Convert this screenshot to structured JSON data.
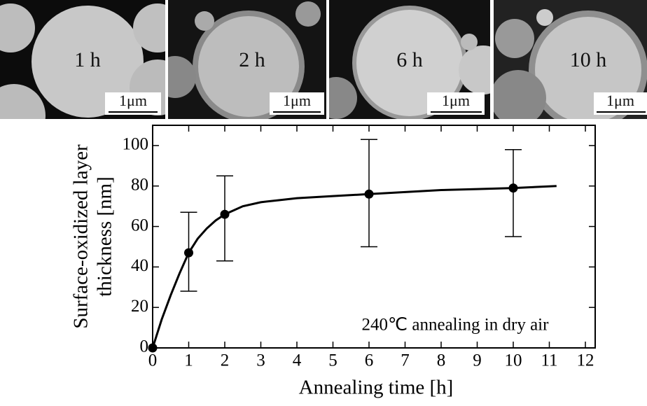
{
  "panels": [
    {
      "label": "1 h",
      "scale_bar": "1μm"
    },
    {
      "label": "2 h",
      "scale_bar": "1μm"
    },
    {
      "label": "6 h",
      "scale_bar": "1μm"
    },
    {
      "label": "10 h",
      "scale_bar": "1μm"
    }
  ],
  "chart_data": {
    "type": "scatter",
    "x_label": "Annealing time [h]",
    "y_label": [
      "Surface-oxidized layer",
      "thickness [nm]"
    ],
    "annotation": "240℃ annealing in dry air",
    "x": [
      0,
      1,
      2,
      6,
      10
    ],
    "values": [
      0,
      47,
      66,
      76,
      79
    ],
    "error_lower": [
      null,
      28,
      43,
      50,
      55
    ],
    "error_upper": [
      null,
      67,
      85,
      103,
      98
    ],
    "color": "#000000",
    "fit": {
      "x": [
        0,
        0.25,
        0.5,
        0.75,
        1,
        1.25,
        1.5,
        1.75,
        2,
        2.5,
        3,
        3.5,
        4,
        5,
        6,
        7,
        8,
        9,
        10,
        11.2
      ],
      "values": [
        0,
        14,
        26,
        37,
        47,
        54,
        59,
        63,
        66,
        70,
        72,
        73,
        74,
        75,
        76,
        77,
        78,
        78.5,
        79,
        80
      ]
    },
    "xlim": [
      0,
      12
    ],
    "ylim": [
      0,
      110
    ],
    "xticks": [
      0,
      1,
      2,
      3,
      4,
      5,
      6,
      7,
      8,
      9,
      10,
      11,
      12
    ],
    "yticks": [
      0,
      20,
      40,
      60,
      80,
      100
    ]
  }
}
